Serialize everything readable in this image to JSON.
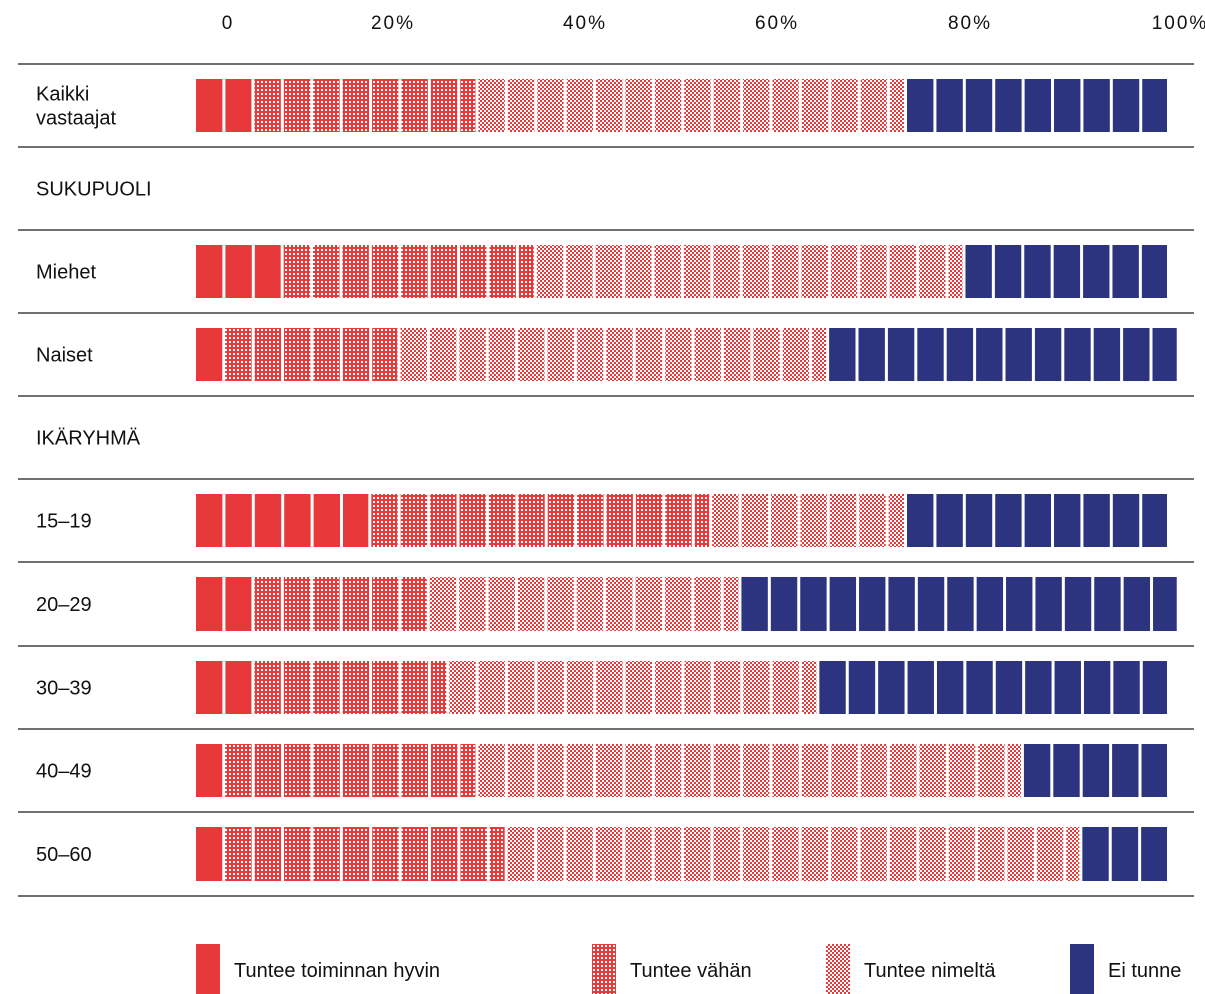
{
  "chart_data": {
    "type": "bar",
    "orientation": "horizontal",
    "stacked": true,
    "xaxis": {
      "ticks": [
        0,
        20,
        40,
        60,
        80,
        100
      ],
      "tick_labels": [
        "0",
        "20%",
        "40%",
        "60%",
        "80%",
        "100%"
      ],
      "range": [
        0,
        100
      ],
      "position": "top"
    },
    "series": [
      {
        "name": "Tuntee toiminnan hyvin",
        "color": "#e8393a",
        "pattern": "solid"
      },
      {
        "name": "Tuntee vähän",
        "color": "#e8393a",
        "pattern": "dots"
      },
      {
        "name": "Tuntee nimeltä",
        "color": "#e8393a",
        "pattern": "checker"
      },
      {
        "name": "Ei tunne",
        "color": "#2c3480",
        "pattern": "solid"
      }
    ],
    "rows": [
      {
        "kind": "data",
        "label": [
          "Kaikki",
          "vastaajat"
        ],
        "values": [
          6,
          23,
          44,
          27
        ]
      },
      {
        "kind": "section",
        "label": [
          "SUKUPUOLI"
        ]
      },
      {
        "kind": "data",
        "label": [
          "Miehet"
        ],
        "values": [
          9,
          26,
          44,
          21
        ]
      },
      {
        "kind": "data",
        "label": [
          "Naiset"
        ],
        "values": [
          3,
          18,
          44,
          36
        ]
      },
      {
        "kind": "section",
        "label": [
          "IKÄRYHMÄ"
        ]
      },
      {
        "kind": "data",
        "label": [
          "15–19"
        ],
        "values": [
          18,
          35,
          20,
          27
        ]
      },
      {
        "kind": "data",
        "label": [
          "20–29"
        ],
        "values": [
          6,
          18,
          32,
          45
        ]
      },
      {
        "kind": "data",
        "label": [
          "30–39"
        ],
        "values": [
          6,
          20,
          38,
          36
        ]
      },
      {
        "kind": "data",
        "label": [
          "40–49"
        ],
        "values": [
          3,
          26,
          56,
          15
        ]
      },
      {
        "kind": "data",
        "label": [
          "50–60"
        ],
        "values": [
          3,
          29,
          59,
          9
        ]
      }
    ],
    "legend": {
      "placement": "bottom"
    },
    "grid": false
  }
}
